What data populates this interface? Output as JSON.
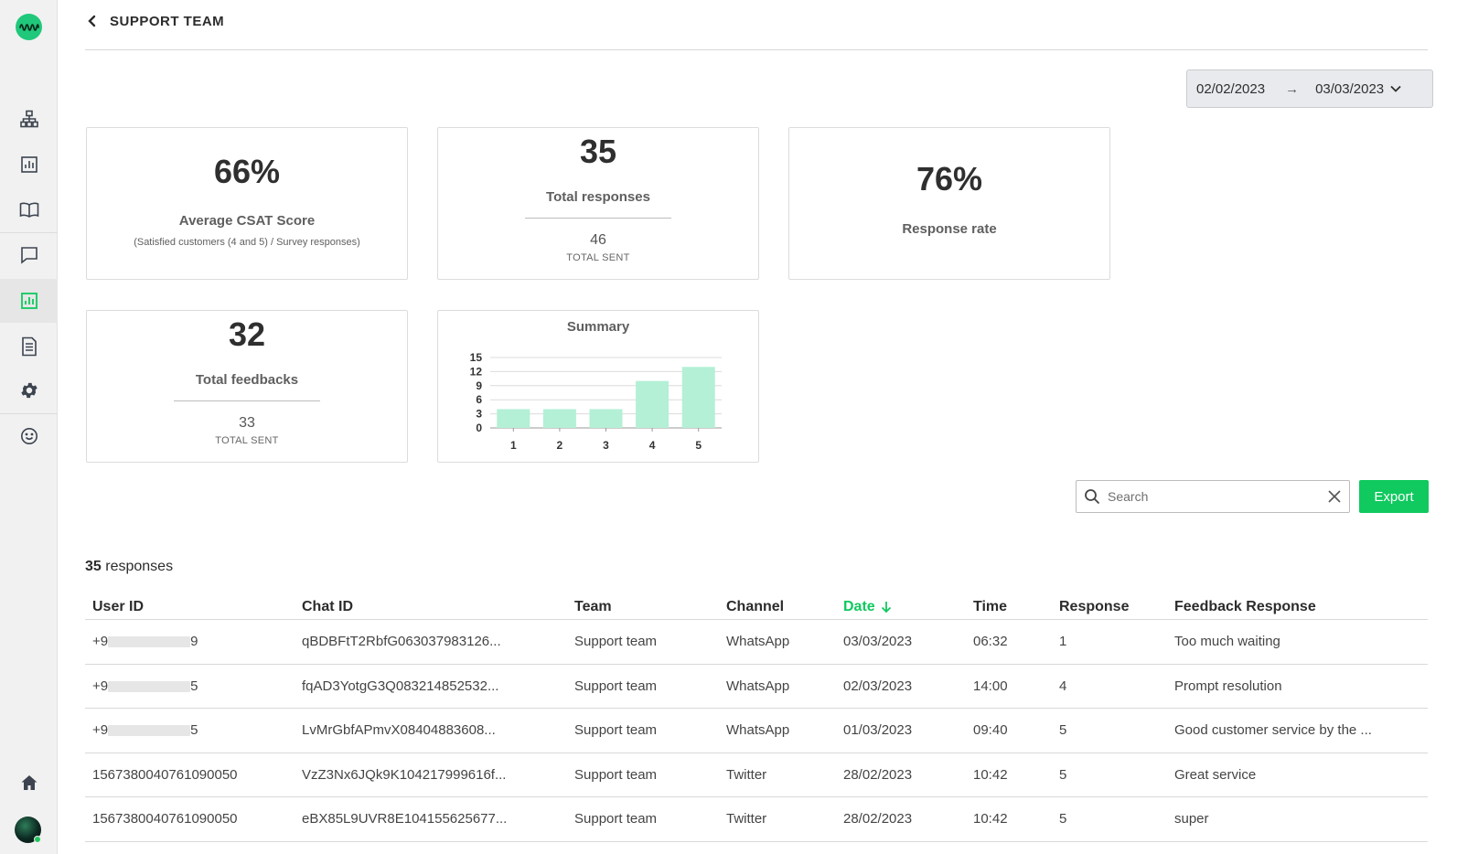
{
  "sidebar": {
    "logo": "sound-wave-logo",
    "items": [
      {
        "name": "hierarchy-icon"
      },
      {
        "name": "bar-chart-icon"
      },
      {
        "name": "book-icon"
      },
      {
        "name": "chat-icon"
      },
      {
        "name": "analytics-icon",
        "active": true
      },
      {
        "name": "document-icon"
      },
      {
        "name": "gear-icon"
      },
      {
        "name": "smiley-icon"
      },
      {
        "name": "home-icon"
      }
    ]
  },
  "header": {
    "title": "SUPPORT TEAM"
  },
  "date_range": {
    "start": "02/02/2023",
    "end": "03/03/2023",
    "arrow": "→"
  },
  "cards": {
    "csat": {
      "value": "66%",
      "label": "Average CSAT Score",
      "sub": "(Satisfied customers (4 and 5) / Survey responses)"
    },
    "responses": {
      "value": "35",
      "label": "Total responses",
      "count": "46",
      "caption": "TOTAL SENT"
    },
    "response_rate": {
      "value": "76%",
      "label": "Response rate"
    },
    "feedbacks": {
      "value": "32",
      "label": "Total feedbacks",
      "count": "33",
      "caption": "TOTAL SENT"
    },
    "summary": {
      "title": "Summary"
    }
  },
  "chart_data": {
    "type": "bar",
    "title": "Summary",
    "categories": [
      "1",
      "2",
      "3",
      "4",
      "5"
    ],
    "values": [
      4,
      4,
      4,
      10,
      13
    ],
    "yticks": [
      "0",
      "3",
      "6",
      "9",
      "12",
      "15"
    ],
    "ylim": [
      0,
      15
    ],
    "grid": true,
    "color": "#b3f0d6"
  },
  "search": {
    "placeholder": "Search"
  },
  "export_label": "Export",
  "responses_summary": {
    "count": "35",
    "suffix": " responses"
  },
  "table": {
    "columns": [
      "User ID",
      "Chat ID",
      "Team",
      "Channel",
      "Date",
      "Time",
      "Response",
      "Feedback Response"
    ],
    "sort_column": "Date",
    "rows": [
      {
        "user_prefix": "+9",
        "user_suffix": "9",
        "masked": true,
        "chat_id": "qBDBFtT2RbfG063037983126...",
        "team": "Support team",
        "channel": "WhatsApp",
        "date": "03/03/2023",
        "time": "06:32",
        "response": "1",
        "feedback": "Too much waiting"
      },
      {
        "user_prefix": "+9",
        "user_suffix": "5",
        "masked": true,
        "chat_id": "fqAD3YotgG3Q083214852532...",
        "team": "Support team",
        "channel": "WhatsApp",
        "date": "02/03/2023",
        "time": "14:00",
        "response": "4",
        "feedback": "Prompt resolution"
      },
      {
        "user_prefix": "+9",
        "user_suffix": "5",
        "masked": true,
        "chat_id": "LvMrGbfAPmvX08404883608...",
        "team": "Support team",
        "channel": "WhatsApp",
        "date": "01/03/2023",
        "time": "09:40",
        "response": "5",
        "feedback": "Good customer service by the ..."
      },
      {
        "user_prefix": "1567380040761090050",
        "user_suffix": "",
        "masked": false,
        "chat_id": "VzZ3Nx6JQk9K104217999616f...",
        "team": "Support team",
        "channel": "Twitter",
        "date": "28/02/2023",
        "time": "10:42",
        "response": "5",
        "feedback": "Great service"
      },
      {
        "user_prefix": "1567380040761090050",
        "user_suffix": "",
        "masked": false,
        "chat_id": "eBX85L9UVR8E104155625677...",
        "team": "Support team",
        "channel": "Twitter",
        "date": "28/02/2023",
        "time": "10:42",
        "response": "5",
        "feedback": "super"
      }
    ]
  }
}
